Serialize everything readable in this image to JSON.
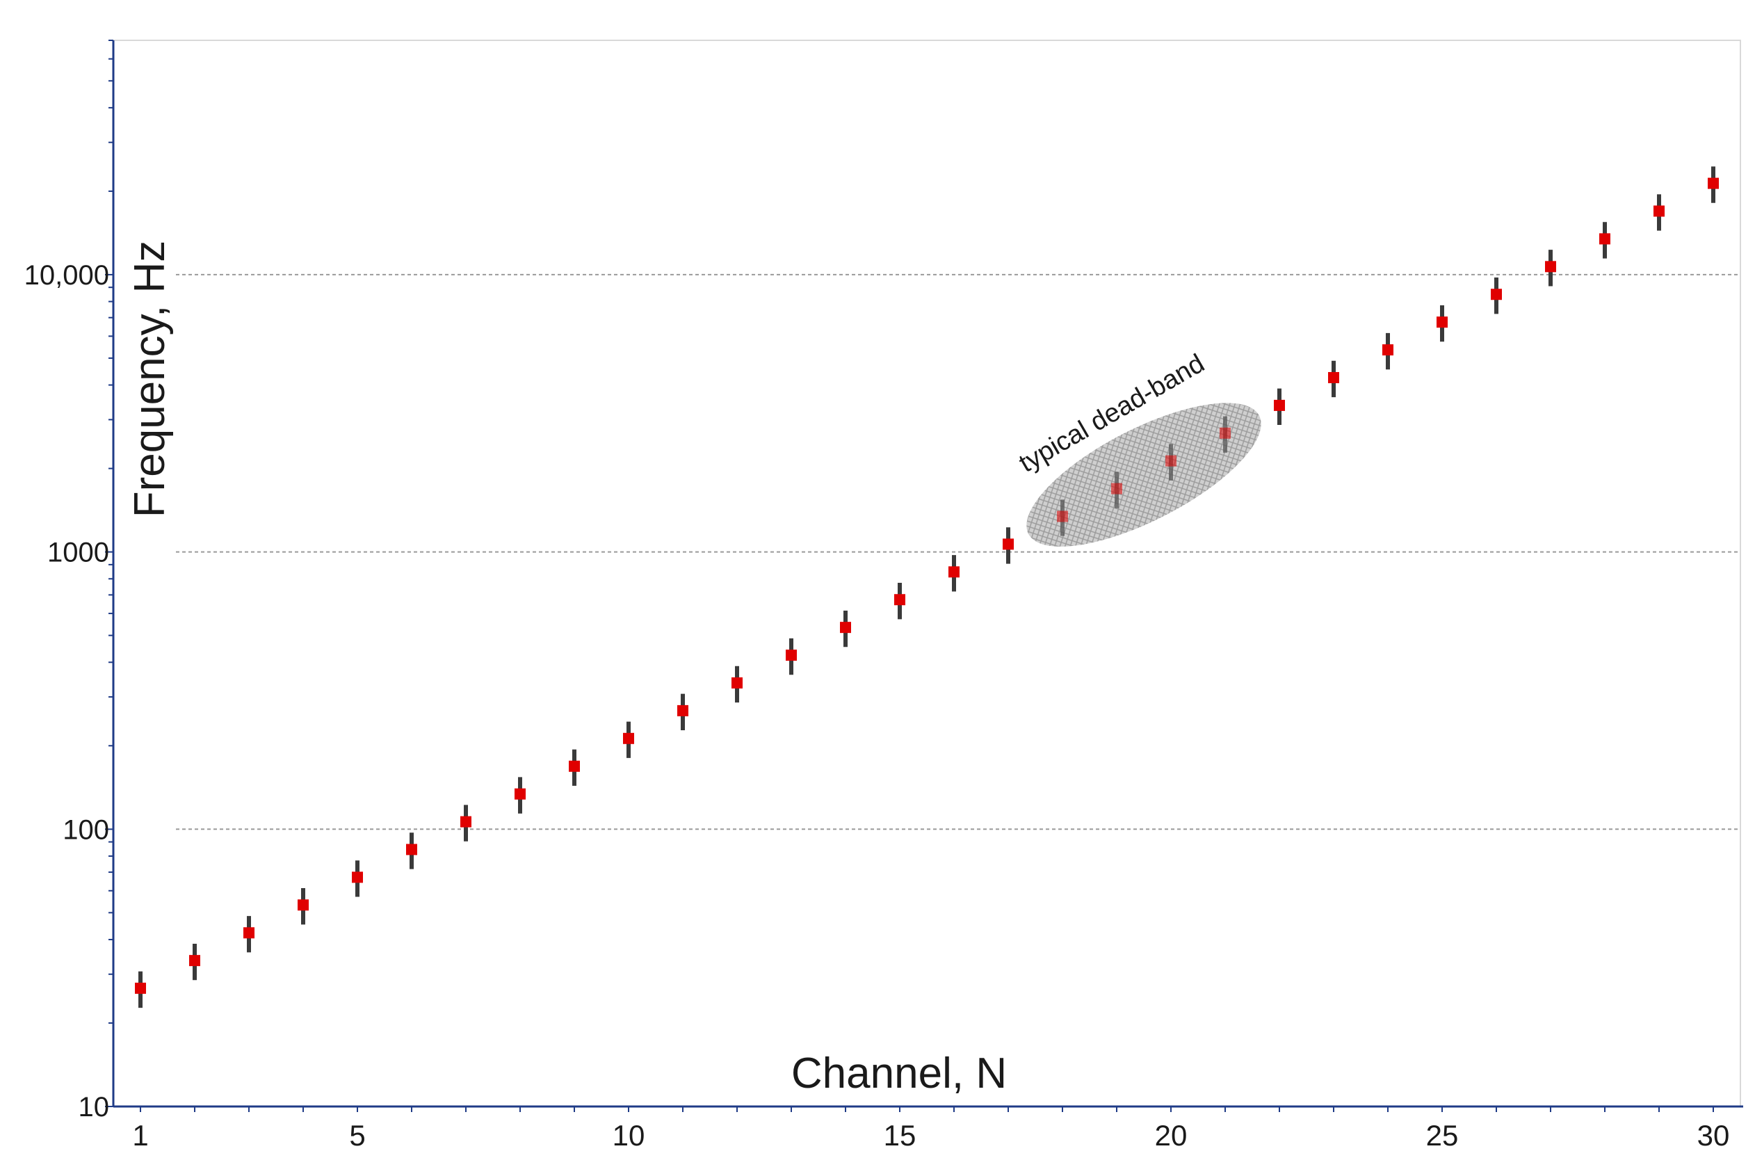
{
  "chart_data": {
    "type": "scatter",
    "title": "",
    "xlabel": "Channel, N",
    "ylabel": "Frequency, Hz",
    "x_ticks": [
      1,
      5,
      10,
      15,
      20,
      25,
      30
    ],
    "x_tick_labels": [
      "1",
      "5",
      "10",
      "15",
      "20",
      "25",
      "30"
    ],
    "y_scale": "log",
    "y_ticks": [
      10,
      100,
      1000,
      10000
    ],
    "y_tick_labels": [
      "10",
      "100",
      "1000",
      "10,000"
    ],
    "xlim": [
      0.5,
      30.5
    ],
    "ylim": [
      10,
      70000
    ],
    "grid": "horizontal dotted at decades",
    "annotation": {
      "text": "typical dead-band",
      "channels": [
        18,
        19,
        20,
        21
      ]
    },
    "colors": {
      "marker": "#e00000",
      "error_bar": "#3a3a3a",
      "axis": "#1f3b87",
      "grid": "#9a9a9a"
    },
    "x": [
      1,
      2,
      3,
      4,
      5,
      6,
      7,
      8,
      9,
      10,
      11,
      12,
      13,
      14,
      15,
      16,
      17,
      18,
      19,
      20,
      21,
      22,
      23,
      24,
      25,
      26,
      27,
      28,
      29,
      30
    ],
    "y": [
      26.7,
      33.6,
      42.3,
      53.3,
      67.1,
      84.5,
      106.4,
      134,
      168.7,
      212.5,
      267.6,
      337,
      424.3,
      534.3,
      672.8,
      847.2,
      1066.8,
      1343.3,
      1691.5,
      2130,
      2682.1,
      3377.4,
      4252.9,
      5355.3,
      6743.5,
      8491.5,
      10692.7,
      13464.5,
      16954.6,
      21349.6
    ],
    "error_bars": {
      "type": "relative",
      "lower": 0.15,
      "upper": 0.15
    }
  }
}
